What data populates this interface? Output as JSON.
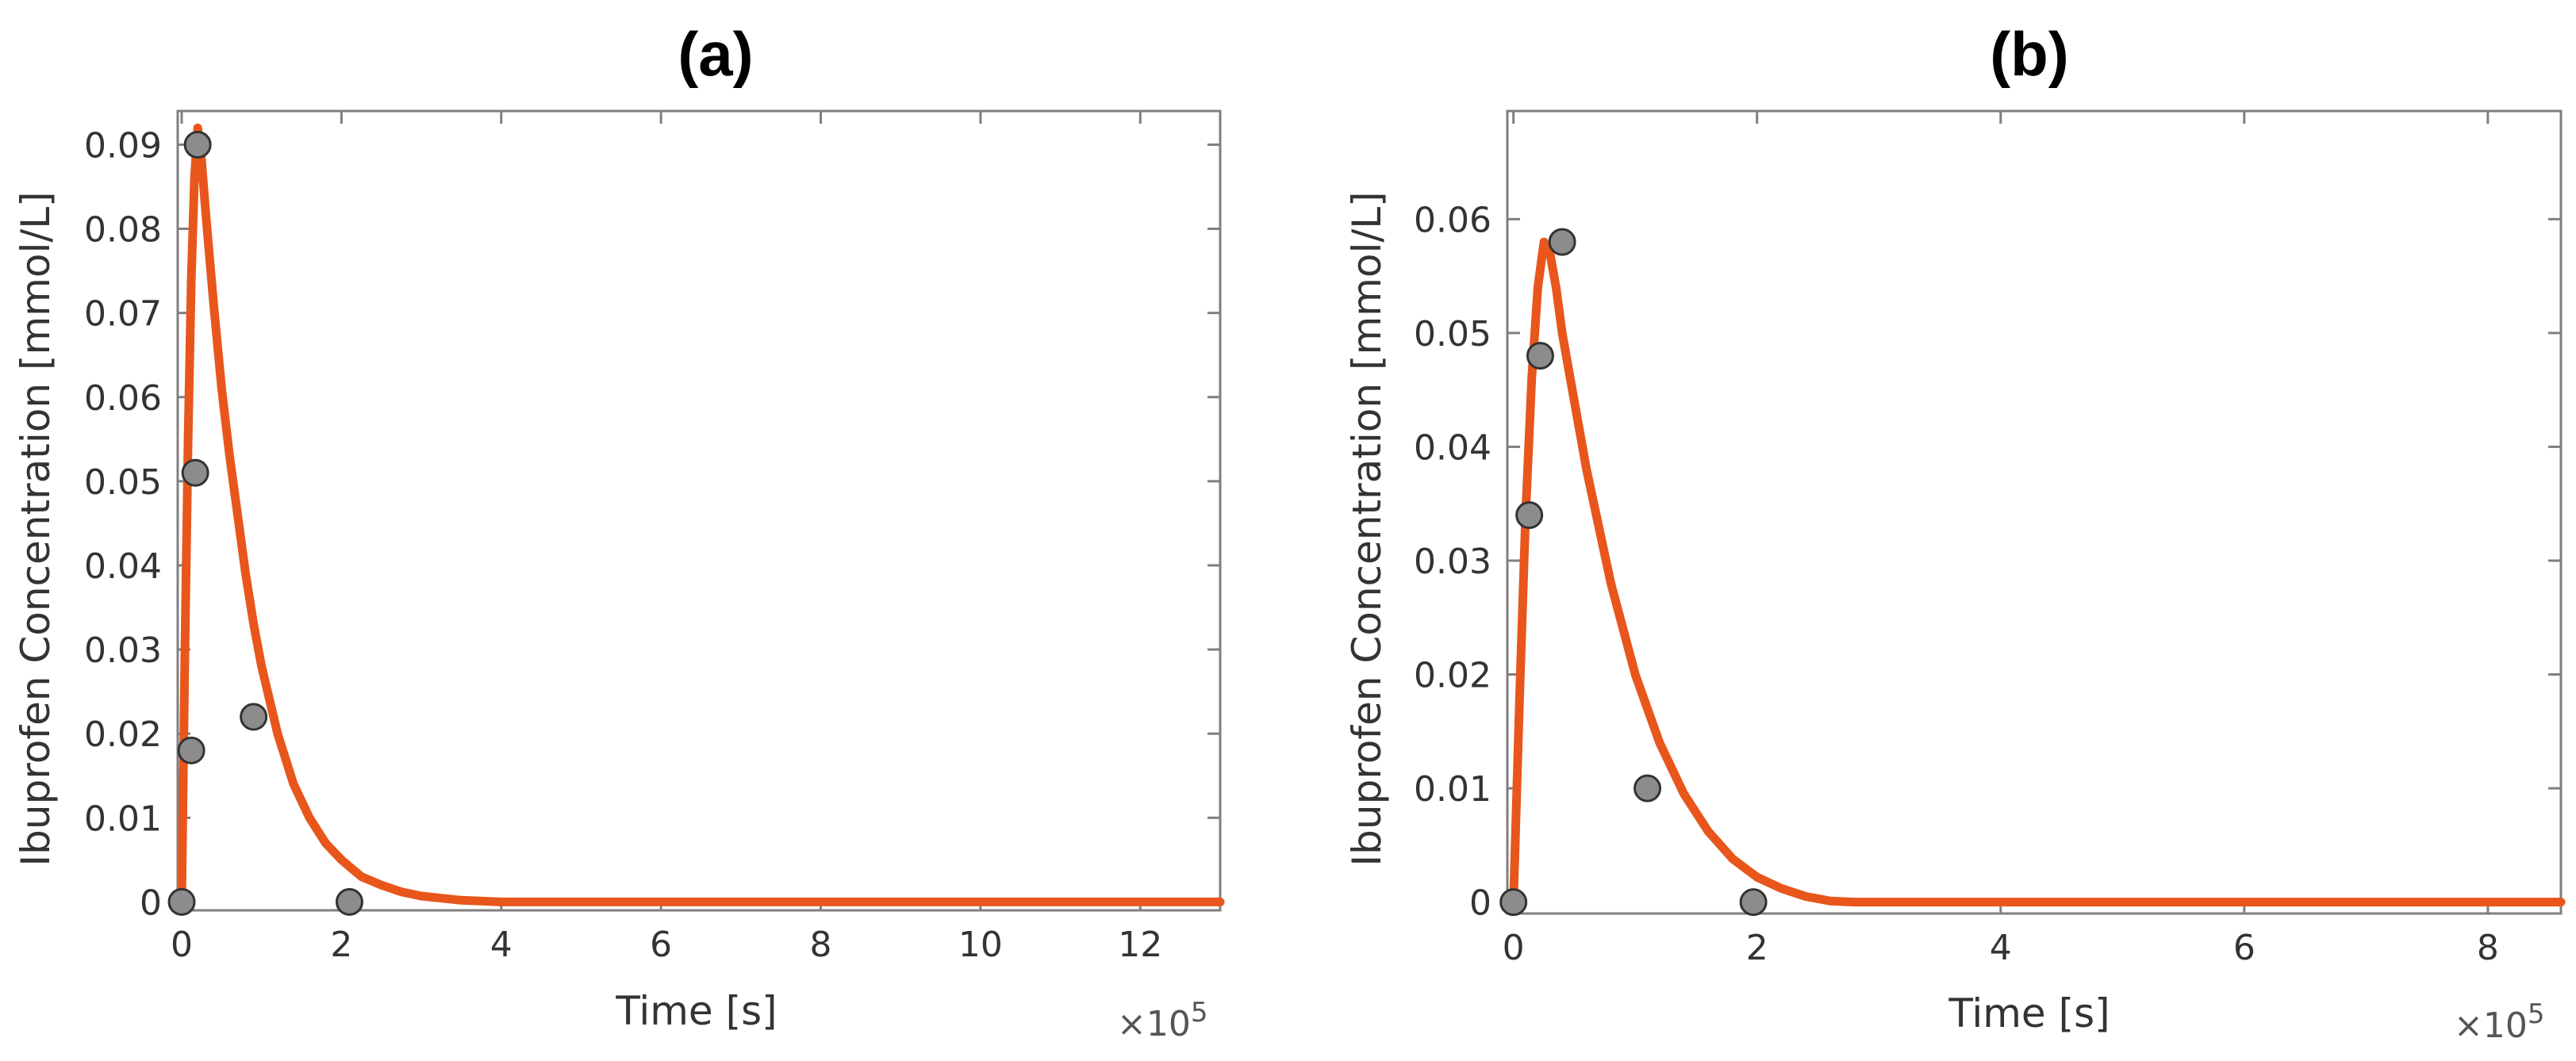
{
  "chart_data": [
    {
      "type": "line",
      "title": "(a)",
      "xlabel": "Time [s]",
      "ylabel": "Ibuprofen Concentration [mmol/L]",
      "x_multiplier": "×10",
      "x_multiplier_exp": "5",
      "xlim": [
        -0.05,
        13
      ],
      "ylim": [
        -0.001,
        0.094
      ],
      "xticks": [
        0,
        2,
        4,
        6,
        8,
        10,
        12
      ],
      "xtick_labels": [
        "0",
        "2",
        "4",
        "6",
        "8",
        "10",
        "12"
      ],
      "yticks": [
        0,
        0.01,
        0.02,
        0.03,
        0.04,
        0.05,
        0.06,
        0.07,
        0.08,
        0.09
      ],
      "ytick_labels": [
        "0",
        "0.01",
        "0.02",
        "0.03",
        "0.04",
        "0.05",
        "0.06",
        "0.07",
        "0.08",
        "0.09"
      ],
      "line_color": "#e8561c",
      "marker_color": "#8c8c8c",
      "series": [
        {
          "kind": "model",
          "x": [
            0,
            0.04,
            0.08,
            0.12,
            0.16,
            0.2,
            0.25,
            0.3,
            0.4,
            0.5,
            0.6,
            0.7,
            0.8,
            0.9,
            1.0,
            1.2,
            1.4,
            1.6,
            1.8,
            2.0,
            2.25,
            2.5,
            2.75,
            3.0,
            3.5,
            4.0,
            13
          ],
          "y": [
            0,
            0.03,
            0.055,
            0.074,
            0.086,
            0.092,
            0.088,
            0.082,
            0.071,
            0.061,
            0.053,
            0.046,
            0.039,
            0.033,
            0.028,
            0.02,
            0.014,
            0.01,
            0.007,
            0.005,
            0.003,
            0.002,
            0.0012,
            0.0007,
            0.0002,
            0,
            0
          ]
        },
        {
          "kind": "observed",
          "x": [
            0,
            0.12,
            0.17,
            0.2,
            0.9,
            2.1
          ],
          "y": [
            0,
            0.018,
            0.051,
            0.09,
            0.022,
            0
          ]
        }
      ]
    },
    {
      "type": "line",
      "title": "(b)",
      "xlabel": "Time [s]",
      "ylabel": "Ibuprofen Concentration [mmol/L]",
      "x_multiplier": "×10",
      "x_multiplier_exp": "5",
      "xlim": [
        -0.05,
        8.6
      ],
      "ylim": [
        -0.001,
        0.0695
      ],
      "xticks": [
        0,
        2,
        4,
        6,
        8
      ],
      "xtick_labels": [
        "0",
        "2",
        "4",
        "6",
        "8"
      ],
      "yticks": [
        0,
        0.01,
        0.02,
        0.03,
        0.04,
        0.05,
        0.06
      ],
      "ytick_labels": [
        "0",
        "0.01",
        "0.02",
        "0.03",
        "0.04",
        "0.05",
        "0.06"
      ],
      "line_color": "#e8561c",
      "marker_color": "#8c8c8c",
      "series": [
        {
          "kind": "model",
          "x": [
            0,
            0.05,
            0.1,
            0.15,
            0.2,
            0.25,
            0.3,
            0.35,
            0.4,
            0.5,
            0.6,
            0.8,
            1.0,
            1.2,
            1.4,
            1.6,
            1.8,
            2.0,
            2.2,
            2.4,
            2.6,
            2.8,
            8.6
          ],
          "y": [
            0,
            0.018,
            0.034,
            0.046,
            0.054,
            0.058,
            0.057,
            0.054,
            0.05,
            0.044,
            0.038,
            0.028,
            0.02,
            0.014,
            0.0095,
            0.0062,
            0.0038,
            0.0022,
            0.0012,
            0.0005,
            0.0001,
            0,
            0
          ]
        },
        {
          "kind": "observed",
          "x": [
            0,
            0.13,
            0.22,
            0.4,
            1.1,
            1.97
          ],
          "y": [
            0,
            0.034,
            0.048,
            0.058,
            0.01,
            0
          ]
        }
      ]
    }
  ]
}
